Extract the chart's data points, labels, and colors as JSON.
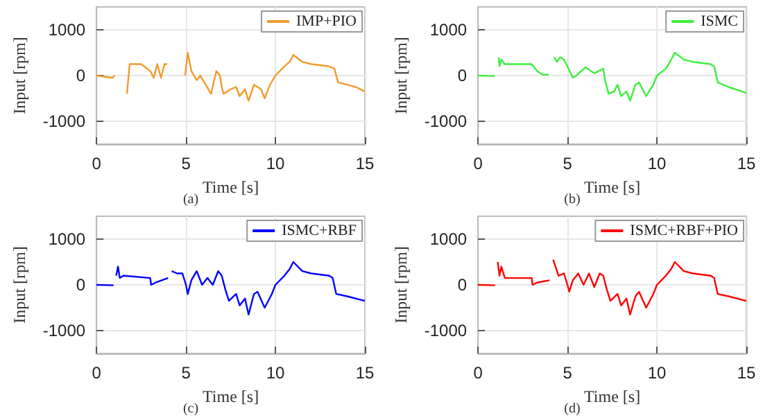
{
  "chart_data": [
    {
      "type": "line",
      "xlabel": "Time [s]",
      "ylabel": "Input [rpm]",
      "annotations": [
        "(a)"
      ],
      "xlim": [
        0,
        15
      ],
      "xticks": [
        0,
        5,
        10,
        15
      ],
      "ylim": [
        -1500,
        1500
      ],
      "yticks": [
        -1000,
        0,
        1000
      ],
      "grid": true,
      "legend": "top right",
      "series": [
        {
          "name": "IMP+PIO",
          "color": "#f39a2b",
          "x": [
            0,
            0.9,
            1.0,
            1.02,
            1.35,
            1.5,
            1.6,
            1.7,
            1.85,
            2.5,
            3.0,
            3.2,
            3.4,
            3.6,
            3.8,
            3.95,
            4.0,
            4.5,
            4.55,
            4.9,
            4.95,
            5.1,
            5.3,
            5.6,
            5.8,
            6.1,
            6.4,
            6.7,
            6.9,
            7.0,
            7.1,
            7.5,
            7.8,
            8.0,
            8.3,
            8.5,
            8.8,
            9.2,
            9.4,
            9.7,
            10.0,
            10.5,
            10.8,
            11.0,
            11.5,
            12.0,
            13.0,
            13.3,
            13.5,
            14.0,
            14.5,
            15
          ],
          "values": [
            0,
            -50,
            0,
            null,
            null,
            null,
            null,
            -400,
            250,
            250,
            100,
            -50,
            250,
            -50,
            250,
            250,
            null,
            null,
            null,
            null,
            0,
            500,
            100,
            -100,
            0,
            -200,
            -400,
            100,
            0,
            -250,
            -400,
            -300,
            -250,
            -450,
            -300,
            -550,
            -200,
            -300,
            -500,
            -200,
            0,
            200,
            300,
            450,
            300,
            250,
            200,
            150,
            -150,
            -200,
            -250,
            -350
          ]
        }
      ]
    },
    {
      "type": "line",
      "xlabel": "Time [s]",
      "ylabel": "Input [rpm]",
      "annotations": [
        "(b)"
      ],
      "xlim": [
        0,
        15
      ],
      "xticks": [
        0,
        5,
        10,
        15
      ],
      "ylim": [
        -1500,
        1500
      ],
      "yticks": [
        -1000,
        0,
        1000
      ],
      "grid": true,
      "legend": "top right",
      "series": [
        {
          "name": "ISMC",
          "color": "#3cf03c",
          "x": [
            0,
            0.95,
            1.0,
            1.1,
            1.15,
            1.2,
            1.3,
            1.5,
            3.0,
            3.3,
            3.6,
            3.95,
            4.0,
            4.2,
            4.25,
            4.4,
            4.6,
            4.8,
            5.0,
            5.3,
            5.5,
            6.0,
            6.5,
            7.0,
            7.1,
            7.3,
            7.6,
            7.8,
            8.0,
            8.3,
            8.5,
            8.8,
            9.0,
            9.4,
            9.8,
            10.0,
            10.5,
            10.8,
            11.0,
            11.5,
            12.0,
            13.0,
            13.2,
            13.4,
            14.0,
            15
          ],
          "values": [
            0,
            -10,
            null,
            null,
            400,
            200,
            350,
            250,
            250,
            100,
            20,
            20,
            null,
            null,
            400,
            300,
            400,
            350,
            200,
            -50,
            0,
            180,
            50,
            150,
            -100,
            -400,
            -350,
            -200,
            -450,
            -350,
            -550,
            -200,
            -150,
            -450,
            -200,
            0,
            150,
            350,
            500,
            350,
            300,
            250,
            200,
            -150,
            -250,
            -380
          ]
        }
      ]
    },
    {
      "type": "line",
      "xlabel": "Time [s]",
      "ylabel": "Input [rpm]",
      "annotations": [
        "(c)"
      ],
      "xlim": [
        0,
        15
      ],
      "xticks": [
        0,
        5,
        10,
        15
      ],
      "ylim": [
        -1500,
        1500
      ],
      "yticks": [
        -1000,
        0,
        1000
      ],
      "grid": true,
      "legend": "top right",
      "series": [
        {
          "name": "ISMC+RBF",
          "color": "#0000ff",
          "x": [
            0,
            0.95,
            1.0,
            1.05,
            1.1,
            1.2,
            1.3,
            1.5,
            3.0,
            3.05,
            3.3,
            4.0,
            4.05,
            4.15,
            4.2,
            4.5,
            4.8,
            5.0,
            5.1,
            5.3,
            5.6,
            5.9,
            6.2,
            6.5,
            6.8,
            7.0,
            7.2,
            7.4,
            7.8,
            8.0,
            8.3,
            8.5,
            8.8,
            9.0,
            9.4,
            9.8,
            10.0,
            10.5,
            10.8,
            11.0,
            11.5,
            12.0,
            13.0,
            13.2,
            13.4,
            14.0,
            15
          ],
          "values": [
            0,
            -10,
            null,
            null,
            200,
            400,
            150,
            200,
            150,
            0,
            50,
            150,
            null,
            null,
            300,
            250,
            250,
            0,
            -200,
            100,
            300,
            0,
            150,
            0,
            300,
            200,
            -100,
            -350,
            -200,
            -450,
            -300,
            -650,
            -200,
            -150,
            -500,
            -200,
            0,
            200,
            350,
            500,
            300,
            250,
            200,
            150,
            -200,
            -250,
            -350
          ]
        }
      ]
    },
    {
      "type": "line",
      "xlabel": "Time [s]",
      "ylabel": "Input [rpm]",
      "annotations": [
        "(d)"
      ],
      "xlim": [
        0,
        15
      ],
      "xticks": [
        0,
        5,
        10,
        15
      ],
      "ylim": [
        -1500,
        1500
      ],
      "yticks": [
        -1000,
        0,
        1000
      ],
      "grid": true,
      "legend": "top right",
      "series": [
        {
          "name": "ISMC+RBF+PIO",
          "color": "#ff0000",
          "x": [
            0,
            0.95,
            1.0,
            1.05,
            1.1,
            1.2,
            1.3,
            1.5,
            3.0,
            3.05,
            3.3,
            4.0,
            4.05,
            4.15,
            4.2,
            4.5,
            4.8,
            5.0,
            5.1,
            5.3,
            5.6,
            5.9,
            6.2,
            6.5,
            6.8,
            7.0,
            7.2,
            7.4,
            7.8,
            8.0,
            8.3,
            8.5,
            8.8,
            9.0,
            9.4,
            9.8,
            10.0,
            10.5,
            10.8,
            11.0,
            11.5,
            12.0,
            13.0,
            13.2,
            13.4,
            14.0,
            15
          ],
          "values": [
            0,
            -10,
            null,
            null,
            500,
            200,
            400,
            150,
            150,
            0,
            50,
            100,
            null,
            null,
            550,
            200,
            250,
            0,
            -150,
            100,
            250,
            0,
            250,
            -50,
            250,
            200,
            -100,
            -350,
            -200,
            -450,
            -300,
            -650,
            -250,
            -150,
            -500,
            -200,
            0,
            200,
            350,
            500,
            300,
            250,
            200,
            150,
            -200,
            -250,
            -350
          ]
        }
      ]
    }
  ]
}
